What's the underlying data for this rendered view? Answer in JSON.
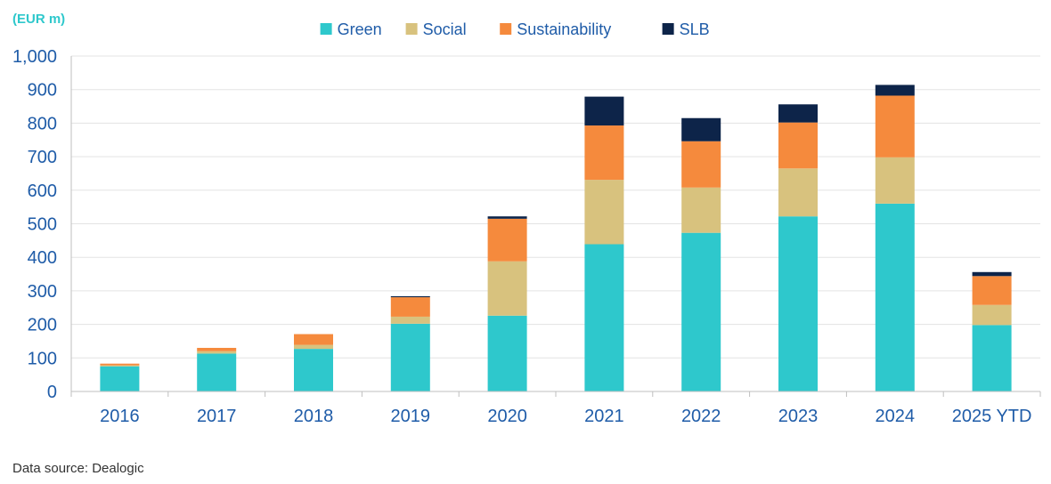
{
  "chart_data": {
    "type": "bar",
    "stacked": true,
    "unit_label": "(EUR m)",
    "categories": [
      "2016",
      "2017",
      "2018",
      "2019",
      "2020",
      "2021",
      "2022",
      "2023",
      "2024",
      "2025 YTD"
    ],
    "series": [
      {
        "name": "Green",
        "color": "#2ec8cc",
        "values": [
          75,
          113,
          127,
          202,
          226,
          439,
          473,
          522,
          560,
          198
        ]
      },
      {
        "name": "Social",
        "color": "#d8c27e",
        "values": [
          3,
          7,
          12,
          21,
          162,
          192,
          135,
          143,
          138,
          60
        ]
      },
      {
        "name": "Sustainability",
        "color": "#f58a3d",
        "values": [
          5,
          10,
          32,
          58,
          127,
          162,
          138,
          137,
          184,
          86
        ]
      },
      {
        "name": "SLB",
        "color": "#0d2449",
        "values": [
          0,
          0,
          0,
          3,
          7,
          86,
          69,
          54,
          32,
          12
        ]
      }
    ],
    "y_ticks": [
      "0",
      "100",
      "200",
      "300",
      "400",
      "500",
      "600",
      "700",
      "800",
      "900",
      "1,000"
    ],
    "ylim": [
      0,
      1000
    ],
    "grid": true,
    "legend_position": "top-center",
    "source": "Data source: Dealogic"
  }
}
